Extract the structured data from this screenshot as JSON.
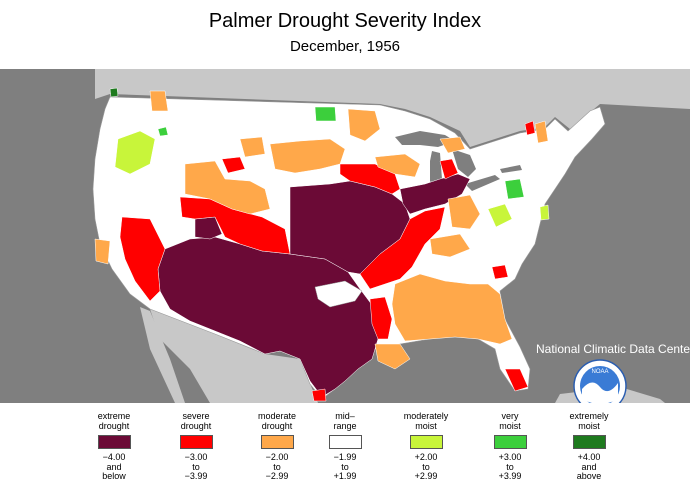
{
  "title": "Palmer Drought Severity Index",
  "subtitle": "December, 1956",
  "attribution": "National Climatic Data Center",
  "logo_text": "NOAA",
  "colors": {
    "background": "#7f7f7f",
    "land": "#ffffff",
    "water": "#7f7f7f",
    "extreme_drought": "#6b0a36",
    "severe_drought": "#ff0000",
    "moderate_drought": "#ffa84a",
    "mid_range": "#ffffff",
    "moderately_moist": "#c8f53a",
    "very_moist": "#3ccf3c",
    "extremely_moist": "#1e7a1e"
  },
  "legend": [
    {
      "label_line1": "extreme",
      "label_line2": "drought",
      "range_line1": "−4.00",
      "range_line2": "and",
      "range_line3": "below",
      "color": "#6b0a36"
    },
    {
      "label_line1": "severe",
      "label_line2": "drought",
      "range_line1": "−3.00",
      "range_line2": "to",
      "range_line3": "−3.99",
      "color": "#ff0000"
    },
    {
      "label_line1": "moderate",
      "label_line2": "drought",
      "range_line1": "−2.00",
      "range_line2": "to",
      "range_line3": "−2.99",
      "color": "#ffa84a"
    },
    {
      "label_line1": "mid–",
      "label_line2": "range",
      "range_line1": "−1.99",
      "range_line2": "to",
      "range_line3": "+1.99",
      "color": "#ffffff"
    },
    {
      "label_line1": "moderately",
      "label_line2": "moist",
      "range_line1": "+2.00",
      "range_line2": "to",
      "range_line3": "+2.99",
      "color": "#c8f53a"
    },
    {
      "label_line1": "very",
      "label_line2": "moist",
      "range_line1": "+3.00",
      "range_line2": "to",
      "range_line3": "+3.99",
      "color": "#3ccf3c"
    },
    {
      "label_line1": "extremely",
      "label_line2": "moist",
      "range_line1": "+4.00",
      "range_line2": "and",
      "range_line3": "above",
      "color": "#1e7a1e"
    }
  ]
}
